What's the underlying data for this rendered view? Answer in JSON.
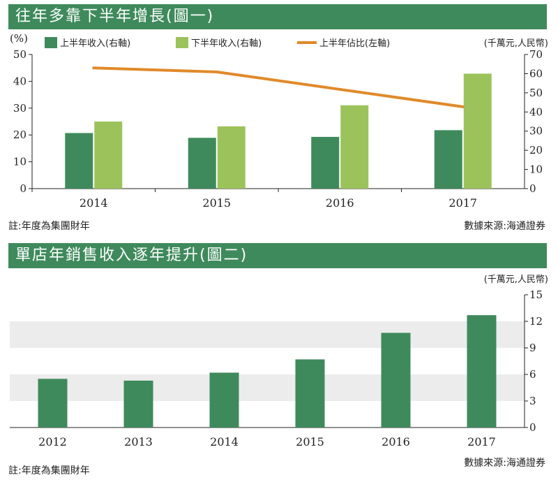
{
  "chart_data": [
    {
      "type": "bar+line",
      "title": "往年多靠下半年增長(圖一)",
      "categories": [
        "2014",
        "2015",
        "2016",
        "2017"
      ],
      "left_axis": {
        "label": "(%)",
        "ylim": [
          0,
          50
        ],
        "ticks": [
          "0",
          "10",
          "20",
          "30",
          "40",
          "50"
        ]
      },
      "right_axis": {
        "label": "(千萬元,人民幣)",
        "ylim": [
          0,
          70
        ],
        "ticks": [
          "0",
          "10",
          "20",
          "30",
          "40",
          "50",
          "60",
          "70"
        ]
      },
      "series": [
        {
          "name": "上半年收入(右軸)",
          "kind": "bar",
          "axis": "right",
          "color": "#3f8a5c",
          "values": [
            29,
            26.5,
            27,
            30.5
          ]
        },
        {
          "name": "下半年收入(右軸)",
          "kind": "bar",
          "axis": "right",
          "color": "#9cc35b",
          "values": [
            35,
            32.5,
            43.5,
            60
          ]
        },
        {
          "name": "上半年佔比(左軸)",
          "kind": "line",
          "axis": "left",
          "color": "#e08a2a",
          "values": [
            45,
            43.5,
            37,
            30.5
          ]
        }
      ],
      "footnote": "註:年度為集團財年",
      "source": "數據來源:海通證券"
    },
    {
      "type": "bar",
      "title": "單店年銷售收入逐年提升(圖二)",
      "categories": [
        "2012",
        "2013",
        "2014",
        "2015",
        "2016",
        "2017"
      ],
      "right_axis": {
        "label": "(千萬元,人民幣)",
        "ylim": [
          0,
          15
        ],
        "ticks": [
          "0",
          "3",
          "6",
          "9",
          "12",
          "15"
        ]
      },
      "series": [
        {
          "name": "單店年銷售收入",
          "kind": "bar",
          "color": "#3f8a5c",
          "values": [
            5.5,
            5.3,
            6.2,
            7.7,
            10.7,
            12.7
          ]
        }
      ],
      "footnote": "註:年度為集團財年",
      "source": "數據來源:海通證券"
    }
  ]
}
